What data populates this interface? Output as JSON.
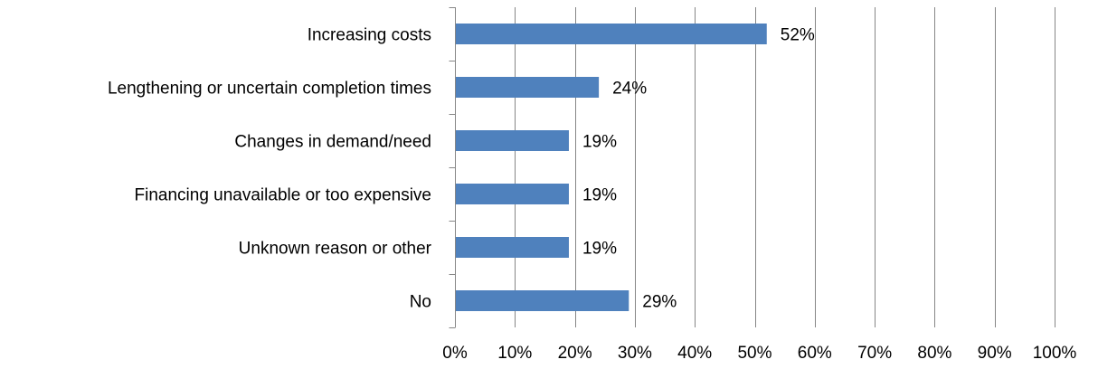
{
  "chart_data": {
    "type": "bar",
    "orientation": "horizontal",
    "categories": [
      "Increasing costs",
      "Lengthening or uncertain completion times",
      "Changes in demand/need",
      "Financing unavailable or too expensive",
      "Unknown reason or other",
      "No"
    ],
    "values": [
      52,
      24,
      19,
      19,
      19,
      29
    ],
    "value_labels": [
      "52%",
      "24%",
      "19%",
      "19%",
      "19%",
      "29%"
    ],
    "xlim": [
      0,
      100
    ],
    "x_ticks": [
      0,
      10,
      20,
      30,
      40,
      50,
      60,
      70,
      80,
      90,
      100
    ],
    "x_tick_labels": [
      "0%",
      "10%",
      "20%",
      "30%",
      "40%",
      "50%",
      "60%",
      "70%",
      "80%",
      "90%",
      "100%"
    ],
    "grid": true,
    "legend": "none",
    "bar_color": "#4f81bd",
    "grid_color": "#868686"
  }
}
